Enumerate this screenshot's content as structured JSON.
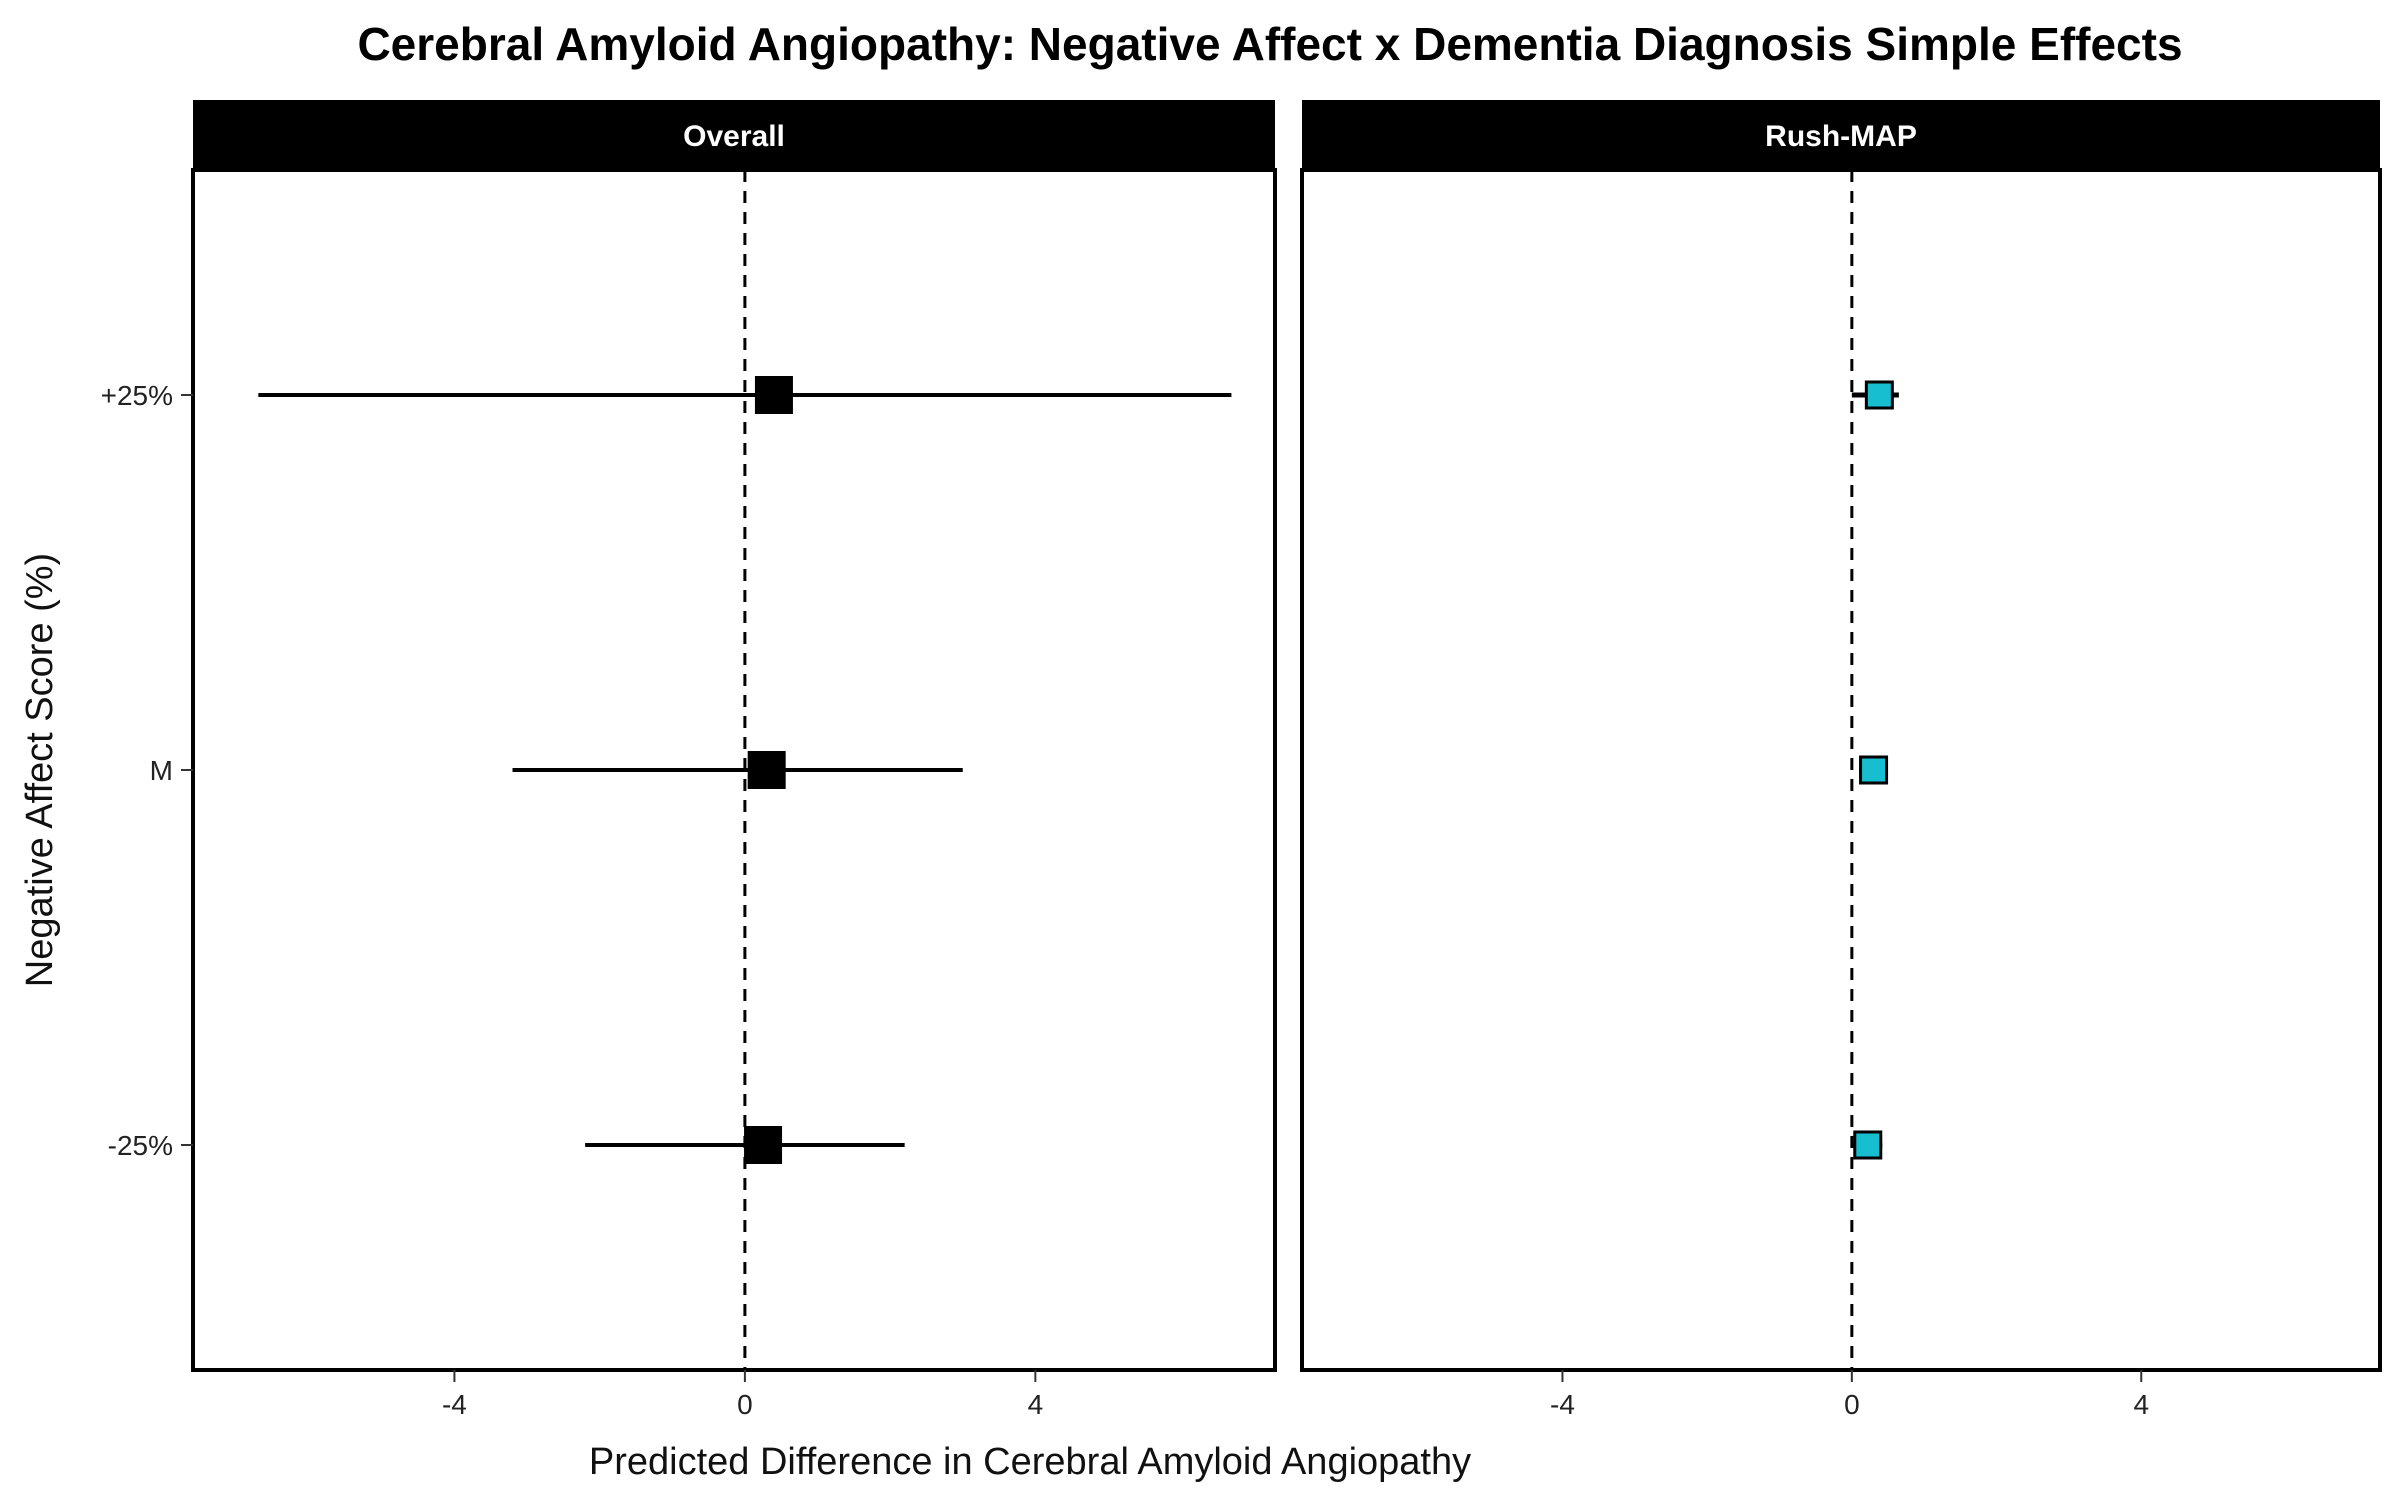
{
  "chart_data": {
    "type": "scatter",
    "subtype": "forest-plot-with-error-bars",
    "title": "Cerebral Amyloid Angiopathy: Negative Affect x Dementia Diagnosis Simple Effects",
    "xlabel": "Predicted Difference in Cerebral Amyloid Angiopathy",
    "ylabel": "Negative Affect Score (%)",
    "xlim": [
      -7.6,
      7.3
    ],
    "x_ticks": [
      -4,
      0,
      4
    ],
    "x_tick_labels": [
      "-4",
      "0",
      "4"
    ],
    "categories": [
      "+25%",
      "M",
      "-25%"
    ],
    "reference_line": 0,
    "grid": false,
    "panels": [
      {
        "name": "Overall",
        "marker_color": "#000000",
        "marker_size": "large",
        "points": [
          {
            "category": "+25%",
            "estimate": 0.4,
            "lower": -6.7,
            "upper": 6.7
          },
          {
            "category": "M",
            "estimate": 0.3,
            "lower": -3.2,
            "upper": 3.0
          },
          {
            "category": "-25%",
            "estimate": 0.25,
            "lower": -2.2,
            "upper": 2.2
          }
        ]
      },
      {
        "name": "Rush-MAP",
        "marker_color": "#17BECF",
        "marker_size": "small",
        "points": [
          {
            "category": "+25%",
            "estimate": 0.38,
            "lower": 0.0,
            "upper": 0.65
          },
          {
            "category": "M",
            "estimate": 0.3,
            "lower": 0.1,
            "upper": 0.45
          },
          {
            "category": "-25%",
            "estimate": 0.22,
            "lower": 0.0,
            "upper": 0.42
          }
        ]
      }
    ]
  }
}
